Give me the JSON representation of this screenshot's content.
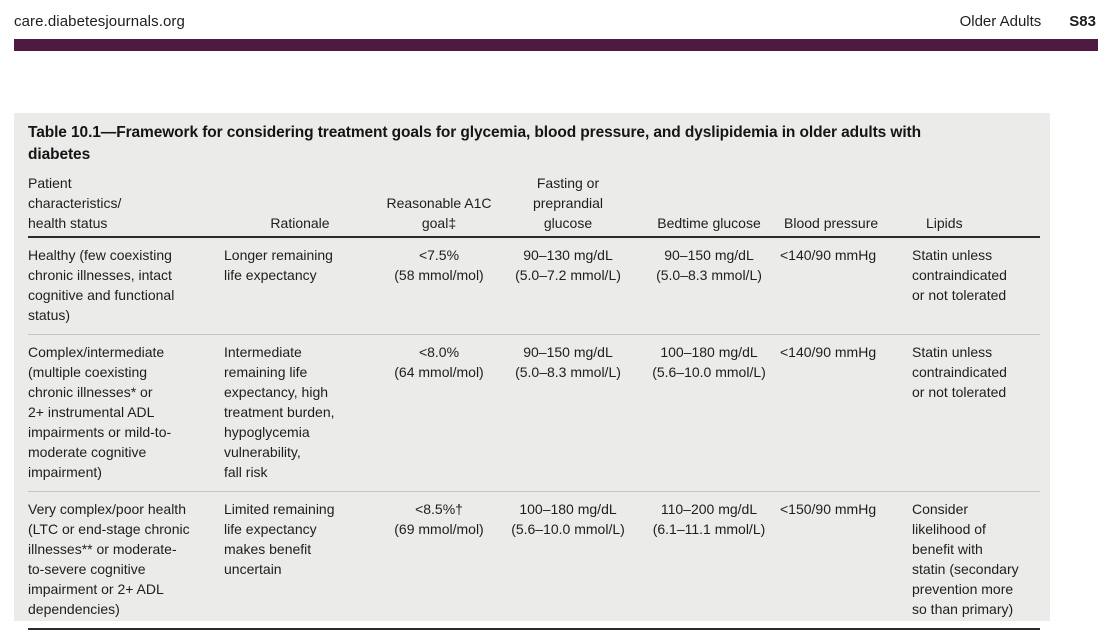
{
  "page": {
    "site": "care.diabetesjournals.org",
    "section": "Older Adults",
    "page_number": "S83"
  },
  "colors": {
    "accent_bar": "#4e1a43",
    "table_background": "#ebebea",
    "rule_dark": "#2b2b2b",
    "rule_light": "#c6c6c3"
  },
  "table": {
    "title": "Table 10.1—Framework for considering treatment goals for glycemia, blood pressure, and dyslipidemia in older adults with\ndiabetes",
    "columns": [
      {
        "label": "Patient\ncharacteristics/\nhealth status"
      },
      {
        "label": "Rationale"
      },
      {
        "label": "Reasonable A1C\ngoal‡"
      },
      {
        "label": "Fasting or\npreprandial\nglucose"
      },
      {
        "label": "Bedtime glucose"
      },
      {
        "label": "Blood pressure"
      },
      {
        "label": "Lipids"
      }
    ],
    "rows": [
      {
        "cells": [
          "Healthy (few coexisting\nchronic illnesses, intact\ncognitive and functional\nstatus)",
          "Longer remaining\nlife expectancy",
          "<7.5%\n(58 mmol/mol)",
          "90–130 mg/dL\n(5.0–7.2 mmol/L)",
          "90–150 mg/dL\n(5.0–8.3 mmol/L)",
          "<140/90 mmHg",
          "Statin unless\ncontraindicated\nor not tolerated"
        ]
      },
      {
        "cells": [
          "Complex/intermediate\n(multiple coexisting\nchronic illnesses* or\n2+ instrumental ADL\nimpairments or mild-to-\nmoderate cognitive\nimpairment)",
          "Intermediate\nremaining life\nexpectancy, high\ntreatment burden,\nhypoglycemia\nvulnerability,\nfall risk",
          "<8.0%\n(64 mmol/mol)",
          "90–150 mg/dL\n(5.0–8.3 mmol/L)",
          "100–180 mg/dL\n(5.6–10.0 mmol/L)",
          "<140/90 mmHg",
          "Statin unless\ncontraindicated\nor not tolerated"
        ]
      },
      {
        "cells": [
          "Very complex/poor health\n(LTC or end-stage chronic\nillnesses** or moderate-\nto-severe cognitive\nimpairment or 2+ ADL\ndependencies)",
          "Limited remaining\nlife expectancy\nmakes benefit\nuncertain",
          "<8.5%†\n(69 mmol/mol)",
          "100–180 mg/dL\n(5.6–10.0 mmol/L)",
          "110–200 mg/dL\n(6.1–11.1 mmol/L)",
          "<150/90 mmHg",
          "Consider\nlikelihood of\nbenefit with\nstatin (secondary\nprevention more\nso than primary)"
        ]
      }
    ]
  }
}
